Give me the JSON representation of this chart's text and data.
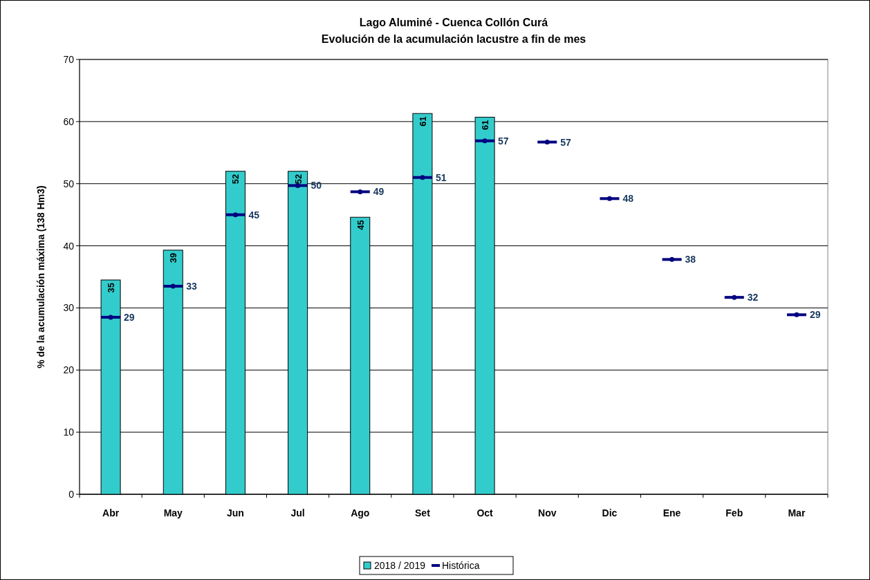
{
  "chart_data": {
    "type": "bar",
    "title": "Lago Aluminé - Cuenca Collón Curá",
    "subtitle": "Evolución de la acumulación lacustre a fin de mes",
    "ylabel": "% de la acumulación máxima (138 Hm3)",
    "categories": [
      "Abr",
      "May",
      "Jun",
      "Jul",
      "Ago",
      "Set",
      "Oct",
      "Nov",
      "Dic",
      "Ene",
      "Feb",
      "Mar"
    ],
    "series": [
      {
        "name": "2018 / 2019",
        "color": "#33cccc",
        "values": [
          34.5,
          39.3,
          52,
          52,
          44.6,
          61.3,
          60.7,
          null,
          null,
          null,
          null,
          null
        ],
        "value_labels": [
          "35",
          "39",
          "52",
          "52",
          "45",
          "61",
          "61",
          null,
          null,
          null,
          null,
          null
        ]
      },
      {
        "name": "Histórica",
        "type": "scatter",
        "color": "#000080",
        "values": [
          28.5,
          33.5,
          45,
          49.7,
          48.7,
          51,
          56.9,
          56.7,
          47.6,
          37.8,
          31.7,
          28.9
        ],
        "value_labels": [
          "29",
          "33",
          "45",
          "50",
          "49",
          "51",
          "57",
          "57",
          "48",
          "38",
          "32",
          "29"
        ]
      }
    ],
    "ylim": [
      0,
      70
    ],
    "yticks": [
      0,
      10,
      20,
      30,
      40,
      50,
      60,
      70
    ],
    "grid": "y",
    "legend": "bottom"
  }
}
